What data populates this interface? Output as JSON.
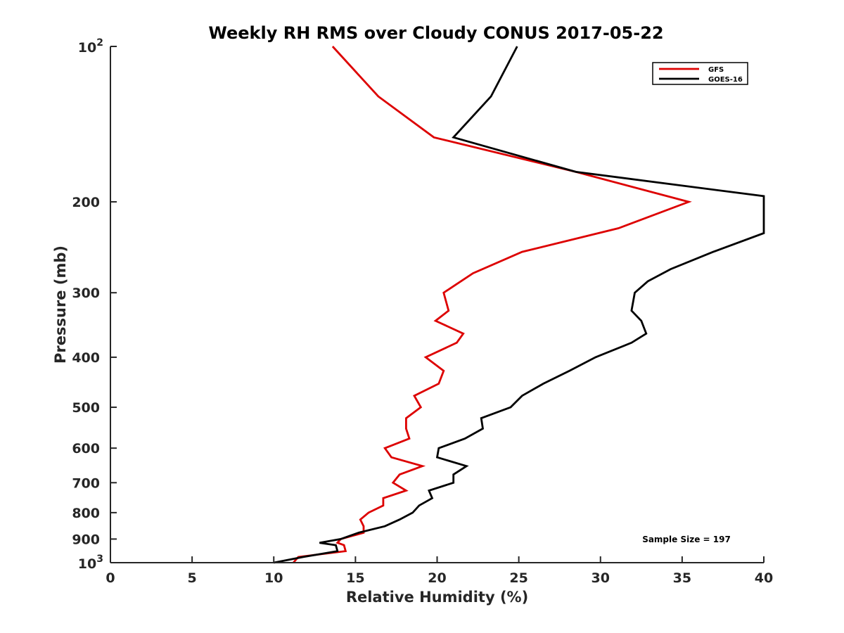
{
  "chart_data": {
    "type": "line",
    "title": "Weekly RH RMS over Cloudy CONUS 2017-05-22",
    "xlabel": "Relative Humidity (%)",
    "ylabel": "Pressure (mb)",
    "xlim": [
      0,
      40
    ],
    "ylim": [
      100,
      1000
    ],
    "yscale": "log",
    "yreversed": true,
    "x_ticks": [
      0,
      5,
      10,
      15,
      20,
      25,
      30,
      35,
      40
    ],
    "y_ticks": [
      {
        "value": 100,
        "base": "10",
        "exp": "2"
      },
      {
        "value": 200,
        "label": "200"
      },
      {
        "value": 300,
        "label": "300"
      },
      {
        "value": 400,
        "label": "400"
      },
      {
        "value": 500,
        "label": "500"
      },
      {
        "value": 600,
        "label": "600"
      },
      {
        "value": 700,
        "label": "700"
      },
      {
        "value": 800,
        "label": "800"
      },
      {
        "value": 900,
        "label": "900"
      },
      {
        "value": 1000,
        "base": "10",
        "exp": "3"
      }
    ],
    "grid": false,
    "legend_position": "top-right",
    "annotation": "Sample Size = 197",
    "series": [
      {
        "name": "GFS",
        "color": "#dd0000",
        "points": [
          [
            13.6,
            100
          ],
          [
            16.4,
            125
          ],
          [
            19.8,
            150
          ],
          [
            28.5,
            175
          ],
          [
            35.4,
            200
          ],
          [
            31.1,
            225
          ],
          [
            25.2,
            250
          ],
          [
            22.2,
            275
          ],
          [
            21.1,
            290
          ],
          [
            20.4,
            300
          ],
          [
            20.7,
            325
          ],
          [
            19.9,
            340
          ],
          [
            21.6,
            360
          ],
          [
            21.2,
            375
          ],
          [
            19.3,
            400
          ],
          [
            20.4,
            425
          ],
          [
            20.1,
            450
          ],
          [
            18.6,
            475
          ],
          [
            19.0,
            500
          ],
          [
            18.1,
            525
          ],
          [
            18.1,
            550
          ],
          [
            18.3,
            575
          ],
          [
            16.8,
            600
          ],
          [
            17.2,
            625
          ],
          [
            19.1,
            650
          ],
          [
            17.7,
            675
          ],
          [
            17.3,
            700
          ],
          [
            18.1,
            725
          ],
          [
            16.7,
            750
          ],
          [
            16.7,
            775
          ],
          [
            15.8,
            800
          ],
          [
            15.3,
            825
          ],
          [
            15.5,
            850
          ],
          [
            15.5,
            875
          ],
          [
            14.1,
            900
          ],
          [
            13.9,
            915
          ],
          [
            14.3,
            925
          ],
          [
            14.4,
            950
          ],
          [
            11.5,
            975
          ],
          [
            11.2,
            1000
          ]
        ]
      },
      {
        "name": "GOES-16",
        "color": "#000000",
        "points": [
          [
            24.9,
            100
          ],
          [
            23.3,
            125
          ],
          [
            21.0,
            150
          ],
          [
            28.5,
            175
          ],
          [
            40.0,
            195
          ],
          [
            40.0,
            230
          ],
          [
            36.9,
            250
          ],
          [
            34.3,
            270
          ],
          [
            32.9,
            285
          ],
          [
            32.1,
            300
          ],
          [
            31.9,
            325
          ],
          [
            32.5,
            340
          ],
          [
            32.8,
            360
          ],
          [
            31.9,
            375
          ],
          [
            29.7,
            400
          ],
          [
            28.1,
            425
          ],
          [
            26.5,
            450
          ],
          [
            25.2,
            475
          ],
          [
            24.5,
            500
          ],
          [
            22.7,
            525
          ],
          [
            22.8,
            550
          ],
          [
            21.7,
            575
          ],
          [
            20.1,
            600
          ],
          [
            20.0,
            625
          ],
          [
            21.8,
            650
          ],
          [
            21.0,
            675
          ],
          [
            21.0,
            700
          ],
          [
            19.5,
            725
          ],
          [
            19.7,
            750
          ],
          [
            18.9,
            775
          ],
          [
            18.5,
            800
          ],
          [
            17.7,
            825
          ],
          [
            16.8,
            850
          ],
          [
            15.2,
            875
          ],
          [
            14.1,
            900
          ],
          [
            12.8,
            915
          ],
          [
            13.8,
            925
          ],
          [
            13.9,
            950
          ],
          [
            11.8,
            975
          ],
          [
            10.0,
            1000
          ]
        ]
      }
    ]
  }
}
